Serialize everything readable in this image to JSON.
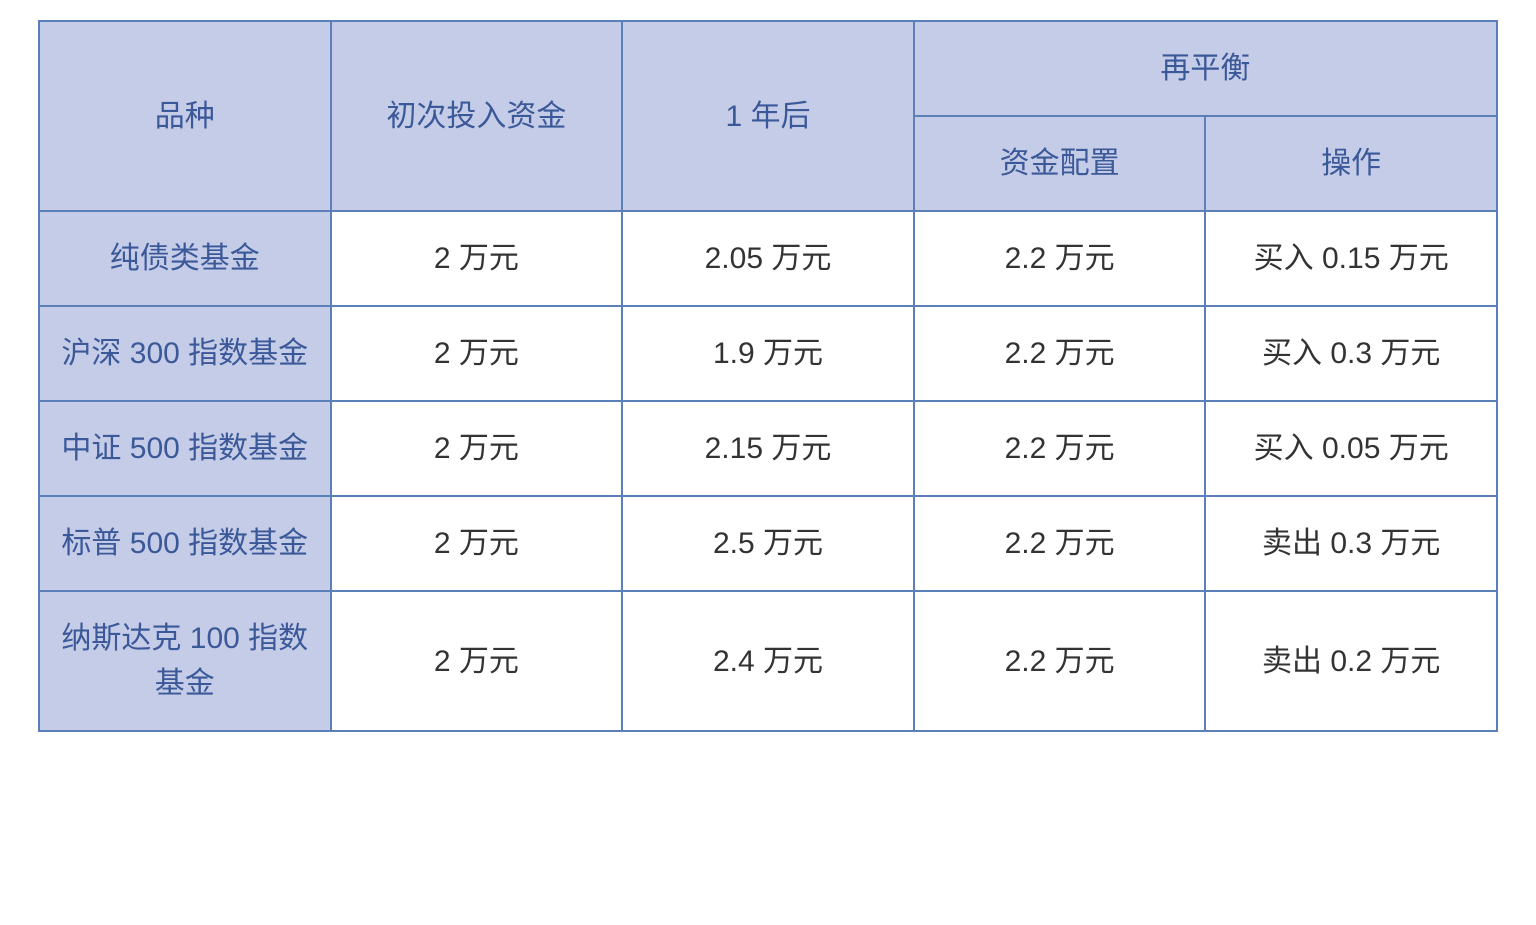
{
  "table": {
    "type": "table",
    "background_color": "#ffffff",
    "header_bg_color": "#c5cce8",
    "header_text_color": "#3b5998",
    "border_color": "#5b7fb8",
    "data_text_color": "#333333",
    "font_size": 30,
    "columns": {
      "variety": "品种",
      "initial": "初次投入资金",
      "year1": "1 年后",
      "rebalance": "再平衡",
      "allocation": "资金配置",
      "operation": "操作"
    },
    "rows": [
      {
        "variety": "纯债类基金",
        "initial": "2 万元",
        "year1": "2.05 万元",
        "allocation": "2.2 万元",
        "operation": "买入 0.15 万元"
      },
      {
        "variety": "沪深 300 指数基金",
        "initial": "2 万元",
        "year1": "1.9 万元",
        "allocation": "2.2 万元",
        "operation": "买入 0.3 万元"
      },
      {
        "variety": "中证 500 指数基金",
        "initial": "2 万元",
        "year1": "2.15 万元",
        "allocation": "2.2 万元",
        "operation": "买入 0.05 万元"
      },
      {
        "variety": "标普 500 指数基金",
        "initial": "2 万元",
        "year1": "2.5 万元",
        "allocation": "2.2 万元",
        "operation": "卖出 0.3 万元"
      },
      {
        "variety": "纳斯达克 100 指数基金",
        "initial": "2 万元",
        "year1": "2.4 万元",
        "allocation": "2.2 万元",
        "operation": "卖出 0.2 万元"
      }
    ]
  }
}
